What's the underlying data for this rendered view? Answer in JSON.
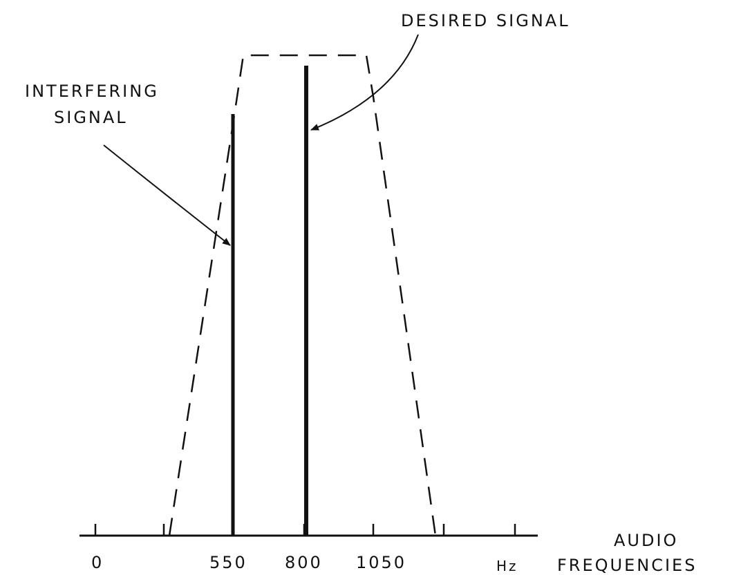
{
  "labels": {
    "desired": "DESIRED SIGNAL",
    "interfering": [
      "INTERFERING",
      "SIGNAL"
    ]
  },
  "axis": {
    "ticks": [
      "0",
      "550",
      "800",
      "1050"
    ],
    "unit": "Hz",
    "title": [
      "AUDIO",
      "FREQUENCIES"
    ]
  }
}
